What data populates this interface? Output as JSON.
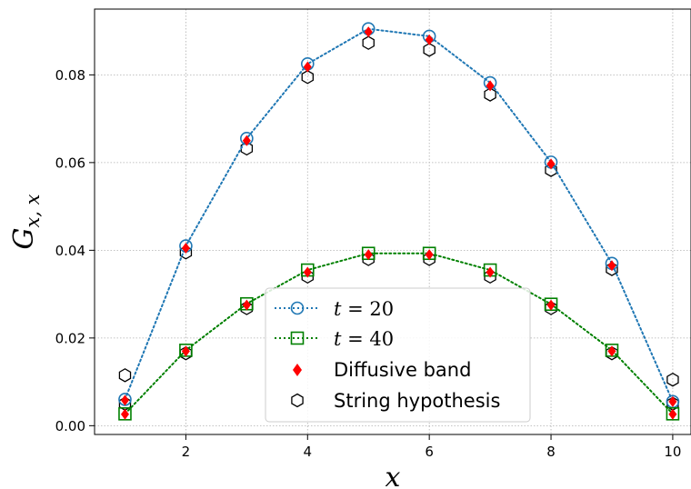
{
  "chart_data": {
    "type": "line",
    "xlabel": "x",
    "ylabel": "G",
    "ylabel_subscript": "x, x",
    "xlim": [
      0.5,
      10.3
    ],
    "ylim": [
      -0.002,
      0.095
    ],
    "xticks": [
      2,
      4,
      6,
      8,
      10
    ],
    "yticks": [
      0.0,
      0.02,
      0.04,
      0.06,
      0.08
    ],
    "ytick_labels": [
      "0.00",
      "0.02",
      "0.04",
      "0.06",
      "0.08"
    ],
    "grid": true,
    "legend_position": "lower-center",
    "x": [
      1,
      2,
      3,
      4,
      5,
      6,
      7,
      8,
      9,
      10
    ],
    "series": [
      {
        "name_var": "t",
        "name_rest": " = 20",
        "marker": "open-circle",
        "line": "dotted",
        "color": "#1f77b4",
        "values": [
          0.006,
          0.041,
          0.0655,
          0.0825,
          0.0905,
          0.0888,
          0.0782,
          0.0601,
          0.037,
          0.0055
        ]
      },
      {
        "name_var": "t",
        "name_rest": " = 40",
        "marker": "open-square",
        "line": "dotted",
        "color": "#008000",
        "values": [
          0.0027,
          0.0172,
          0.0278,
          0.0355,
          0.0393,
          0.0393,
          0.0355,
          0.0277,
          0.0172,
          0.0027
        ]
      },
      {
        "name": "Diffusive band",
        "marker": "filled-diamond",
        "line": "none",
        "color": "#ff0000",
        "values_a": [
          0.0058,
          0.0405,
          0.065,
          0.0818,
          0.0898,
          0.088,
          0.0775,
          0.0597,
          0.0365,
          0.0055
        ],
        "values_b": [
          0.0026,
          0.017,
          0.0275,
          0.035,
          0.039,
          0.039,
          0.035,
          0.0275,
          0.017,
          0.0026
        ]
      },
      {
        "name": "String hypothesis",
        "marker": "open-hexagon",
        "line": "none",
        "color": "#000000",
        "values_a": [
          0.0115,
          0.0395,
          0.0632,
          0.0795,
          0.0873,
          0.0857,
          0.0755,
          0.0583,
          0.0357,
          0.0105
        ],
        "values_b": [
          0.005,
          0.0165,
          0.0268,
          0.034,
          0.038,
          0.038,
          0.034,
          0.0268,
          0.0165,
          0.005
        ]
      }
    ]
  }
}
